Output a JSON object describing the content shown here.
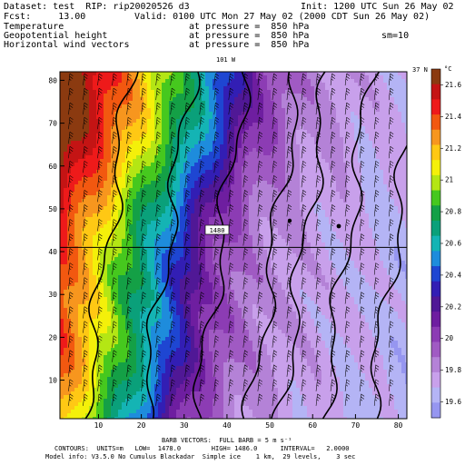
{
  "header": {
    "dataset": "Dataset: test  RIP: rip20020526 d3",
    "init": "Init: 1200 UTC Sun 26 May 02",
    "fcst": "Fcst:     13.00",
    "valid": "Valid: 0100 UTC Mon 27 May 02 (2000 CDT Sun 26 May 02)",
    "rows": [
      {
        "field": "Temperature",
        "level": "at pressure =  850 hPa"
      },
      {
        "field": "Geopotential height",
        "level": "at pressure =  850 hPa"
      },
      {
        "field": "Horizontal wind vectors",
        "level": "at pressure =  850 hPa"
      }
    ],
    "smoothing": "sm=10"
  },
  "plot": {
    "top_label": "101 W",
    "right_label": "37 N",
    "contour_label": "1480"
  },
  "colorbar": {
    "unit": "°C",
    "labels": [
      "21.6",
      "21.4",
      "21.2",
      "21",
      "20.8",
      "20.6",
      "20.4",
      "20.2",
      "20",
      "19.8",
      "19.6"
    ],
    "colors": [
      "#8b3a10",
      "#c41414",
      "#ee1a1a",
      "#f25810",
      "#f7961e",
      "#ffc814",
      "#f4f00a",
      "#b4e614",
      "#46c81e",
      "#14a046",
      "#0aa07a",
      "#14b4b4",
      "#1e8cdc",
      "#1e46d2",
      "#321eb4",
      "#501896",
      "#6e1ea0",
      "#8c3cb4",
      "#a05ac3",
      "#b482d7",
      "#c8a0eb",
      "#b4b4f5",
      "#9696f0"
    ]
  },
  "footer": {
    "line1": "BARB VECTORS:  FULL BARB = 5 m s⁻¹",
    "line2": "CONTOURS:  UNITS=m   LOW=  1478.0        HIGH= 1486.0      INTERVAL=   2.0000",
    "line3": "Model info: V3.5.0 No Cumulus Blackadar  Simple ice    1 km,  29 levels,    3 sec"
  },
  "chart_data": {
    "type": "heatmap",
    "title": "Temperature at pressure = 850 hPa",
    "colorbar_unit": "°C",
    "colorbar_range": [
      19.5,
      21.7
    ],
    "x_ticks": [
      10,
      20,
      30,
      40,
      50,
      60,
      70,
      80
    ],
    "y_ticks": [
      10,
      20,
      30,
      40,
      50,
      60,
      70,
      80
    ],
    "xlim": [
      1,
      82
    ],
    "ylim": [
      1,
      82
    ],
    "horizontal_line_y": 41,
    "temperature_bands_along_x": [
      {
        "x": 1,
        "value": 21.5
      },
      {
        "x": 10,
        "value": 21.2
      },
      {
        "x": 17,
        "value": 20.9
      },
      {
        "x": 24,
        "value": 20.65
      },
      {
        "x": 31,
        "value": 20.35
      },
      {
        "x": 38,
        "value": 20.05
      },
      {
        "x": 48,
        "value": 19.85
      },
      {
        "x": 60,
        "value": 19.75
      },
      {
        "x": 75,
        "value": 19.7
      },
      {
        "x": 82,
        "value": 19.65
      }
    ],
    "geopotential_contours_m": {
      "low": 1478.0,
      "high": 1486.0,
      "interval": 2.0,
      "labeled_value": 1480
    },
    "wind_barbs": {
      "full_barb": "5 m s-1",
      "direction": "southerly"
    }
  }
}
